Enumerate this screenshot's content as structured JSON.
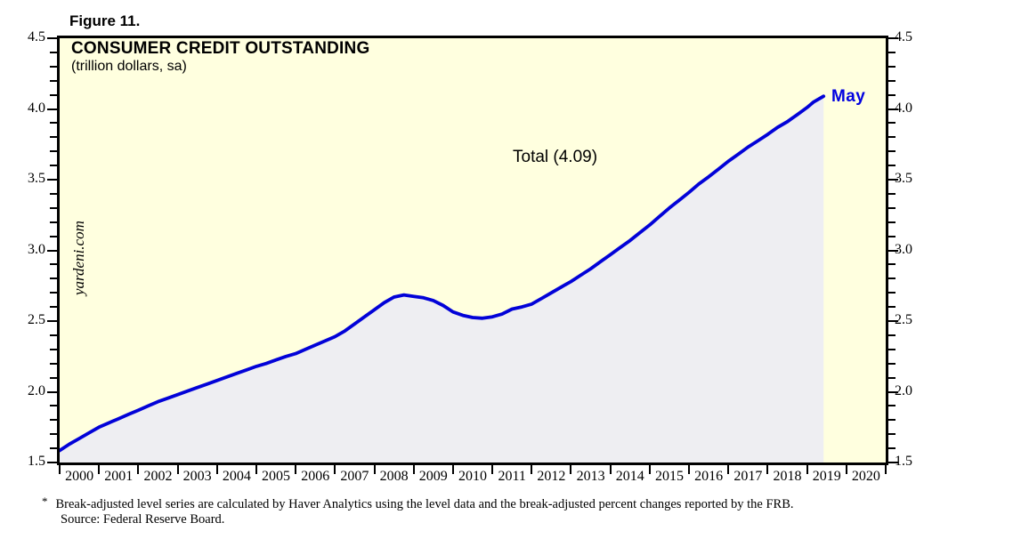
{
  "figure": {
    "label": "Figure 11."
  },
  "chart": {
    "title": "CONSUMER CREDIT OUTSTANDING",
    "subtitle": "(trillion dollars, sa)",
    "annotation": "Total (4.09)",
    "last_point_label": "May",
    "watermark": "yardeni.com",
    "colors": {
      "line": "#0202D8",
      "last_label": "#0202E0",
      "area_fill": "#EEEEF2",
      "plot_bg": "#FFFFDF",
      "page_bg": "#FFFFFF",
      "axis": "#000000"
    }
  },
  "chart_data": {
    "type": "line",
    "title": "CONSUMER CREDIT OUTSTANDING",
    "subtitle": "(trillion dollars, sa)",
    "annotation": "Total (4.09)",
    "last_label": "May",
    "last_value": 4.09,
    "xlim": [
      2000,
      2021
    ],
    "ylim": [
      1.5,
      4.5
    ],
    "y_minor_step": 0.1,
    "y_tick_labels": [
      "1.5",
      "2.0",
      "2.5",
      "3.0",
      "3.5",
      "4.0",
      "4.5"
    ],
    "x_tick_labels": [
      "2000",
      "2001",
      "2002",
      "2003",
      "2004",
      "2005",
      "2006",
      "2007",
      "2008",
      "2009",
      "2010",
      "2011",
      "2012",
      "2013",
      "2014",
      "2015",
      "2016",
      "2017",
      "2018",
      "2019",
      "2020"
    ],
    "grid": false,
    "legend": "none",
    "series": [
      {
        "name": "Total",
        "x": [
          2000.0,
          2000.25,
          2000.5,
          2000.75,
          2001.0,
          2001.25,
          2001.5,
          2001.75,
          2002.0,
          2002.25,
          2002.5,
          2002.75,
          2003.0,
          2003.25,
          2003.5,
          2003.75,
          2004.0,
          2004.25,
          2004.5,
          2004.75,
          2005.0,
          2005.25,
          2005.5,
          2005.75,
          2006.0,
          2006.25,
          2006.5,
          2006.75,
          2007.0,
          2007.25,
          2007.5,
          2007.75,
          2008.0,
          2008.25,
          2008.5,
          2008.75,
          2009.0,
          2009.25,
          2009.5,
          2009.75,
          2010.0,
          2010.25,
          2010.5,
          2010.75,
          2011.0,
          2011.25,
          2011.5,
          2011.75,
          2012.0,
          2012.25,
          2012.5,
          2012.75,
          2013.0,
          2013.25,
          2013.5,
          2013.75,
          2014.0,
          2014.25,
          2014.5,
          2014.75,
          2015.0,
          2015.25,
          2015.5,
          2015.75,
          2016.0,
          2016.25,
          2016.5,
          2016.75,
          2017.0,
          2017.25,
          2017.5,
          2017.75,
          2018.0,
          2018.25,
          2018.5,
          2018.75,
          2019.0,
          2019.17,
          2019.42
        ],
        "values": [
          1.585,
          1.63,
          1.67,
          1.71,
          1.75,
          1.78,
          1.81,
          1.84,
          1.87,
          1.9,
          1.93,
          1.955,
          1.98,
          2.005,
          2.03,
          2.055,
          2.08,
          2.105,
          2.13,
          2.155,
          2.18,
          2.2,
          2.225,
          2.25,
          2.27,
          2.3,
          2.33,
          2.36,
          2.39,
          2.43,
          2.48,
          2.53,
          2.58,
          2.63,
          2.67,
          2.685,
          2.675,
          2.665,
          2.645,
          2.61,
          2.565,
          2.54,
          2.525,
          2.52,
          2.53,
          2.55,
          2.585,
          2.6,
          2.62,
          2.66,
          2.7,
          2.74,
          2.78,
          2.825,
          2.87,
          2.92,
          2.97,
          3.02,
          3.07,
          3.125,
          3.18,
          3.24,
          3.3,
          3.355,
          3.41,
          3.47,
          3.52,
          3.575,
          3.63,
          3.68,
          3.73,
          3.775,
          3.82,
          3.87,
          3.91,
          3.96,
          4.01,
          4.05,
          4.09
        ]
      }
    ]
  },
  "footnote": {
    "marker": "*",
    "line1": "Break-adjusted level series are calculated by Haver Analytics using the level data and the break-adjusted percent changes reported by the FRB.",
    "line2": "Source: Federal Reserve Board."
  }
}
